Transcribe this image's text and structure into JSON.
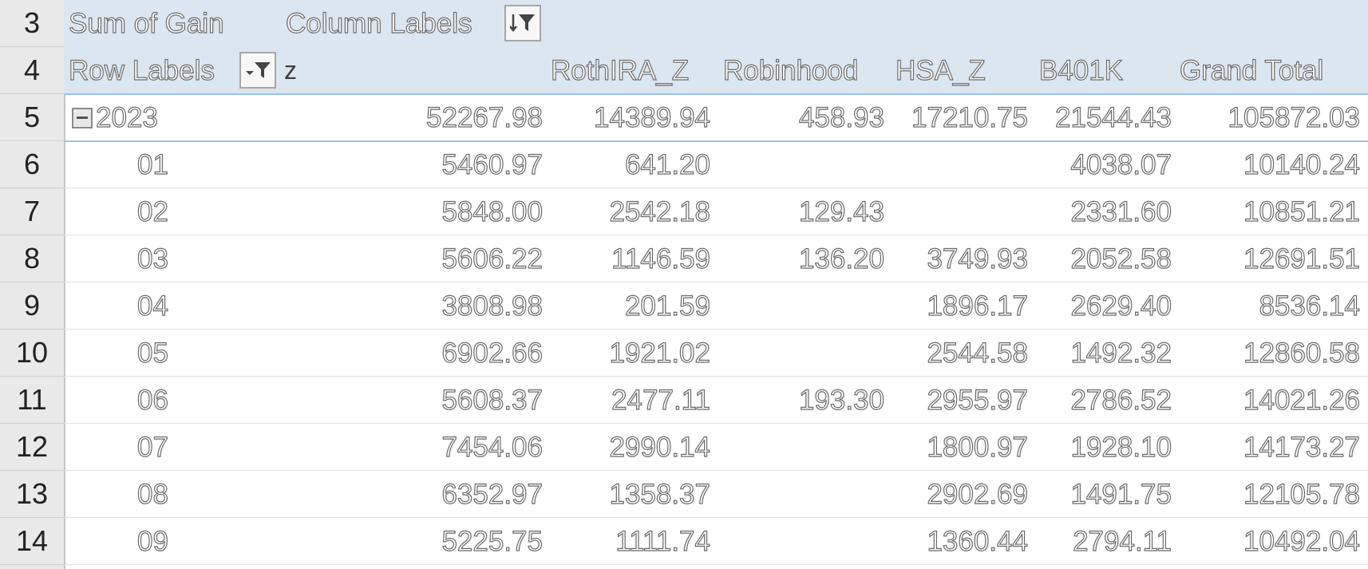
{
  "row_numbers": [
    "3",
    "4",
    "5",
    "6",
    "7",
    "8",
    "9",
    "10",
    "11",
    "12",
    "13",
    "14"
  ],
  "pivot": {
    "value_field": "Sum of Gain",
    "column_labels": "Column Labels",
    "row_labels": "Row Labels",
    "row_field_z": "z",
    "columns": [
      "",
      "RothIRA_Z",
      "Robinhood",
      "HSA_Z",
      "B401K",
      "Grand Total"
    ],
    "year_row": {
      "label": "2023",
      "values": [
        "52267.98",
        "14389.94",
        "458.93",
        "17210.75",
        "21544.43",
        "105872.03"
      ]
    },
    "rows": [
      {
        "label": "01",
        "values": [
          "5460.97",
          "641.20",
          "",
          "",
          "4038.07",
          "10140.24"
        ]
      },
      {
        "label": "02",
        "values": [
          "5848.00",
          "2542.18",
          "129.43",
          "",
          "2331.60",
          "10851.21"
        ]
      },
      {
        "label": "03",
        "values": [
          "5606.22",
          "1146.59",
          "136.20",
          "3749.93",
          "2052.58",
          "12691.51"
        ]
      },
      {
        "label": "04",
        "values": [
          "3808.98",
          "201.59",
          "",
          "1896.17",
          "2629.40",
          "8536.14"
        ]
      },
      {
        "label": "05",
        "values": [
          "6902.66",
          "1921.02",
          "",
          "2544.58",
          "1492.32",
          "12860.58"
        ]
      },
      {
        "label": "06",
        "values": [
          "5608.37",
          "2477.11",
          "193.30",
          "2955.97",
          "2786.52",
          "14021.26"
        ]
      },
      {
        "label": "07",
        "values": [
          "7454.06",
          "2990.14",
          "",
          "1800.97",
          "1928.10",
          "14173.27"
        ]
      },
      {
        "label": "08",
        "values": [
          "6352.97",
          "1358.37",
          "",
          "2902.69",
          "1491.75",
          "12105.78"
        ]
      },
      {
        "label": "09",
        "values": [
          "5225.75",
          "1111.74",
          "",
          "1360.44",
          "2794.11",
          "10492.04"
        ]
      }
    ]
  }
}
